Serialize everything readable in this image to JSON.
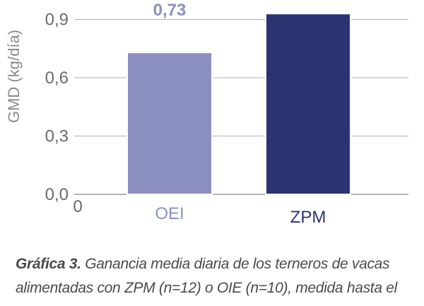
{
  "chart_data": {
    "type": "bar",
    "ylabel": "GMD (kg/día)",
    "x_origin_label": "0",
    "categories": [
      "OEI",
      "ZPM"
    ],
    "values": [
      0.73,
      0.93
    ],
    "data_labels": [
      "0,73",
      ""
    ],
    "yticks": [
      "0,0",
      "0,3",
      "0,6",
      "0,9"
    ],
    "ytick_values": [
      0,
      0.3,
      0.6,
      0.9
    ],
    "ylim": [
      0,
      1.0
    ],
    "grid": true,
    "colors": [
      "#8b90c0",
      "#2b3472"
    ],
    "axis_color": "#9a9a9a",
    "grid_color": "#b0b0b0"
  },
  "caption": {
    "label": "Gráfica 3.",
    "line1": " Ganancia media diaria de los terneros de vacas",
    "line2": "alimentadas con ZPM (n=12) o OIE (n=10), medida hasta el"
  }
}
